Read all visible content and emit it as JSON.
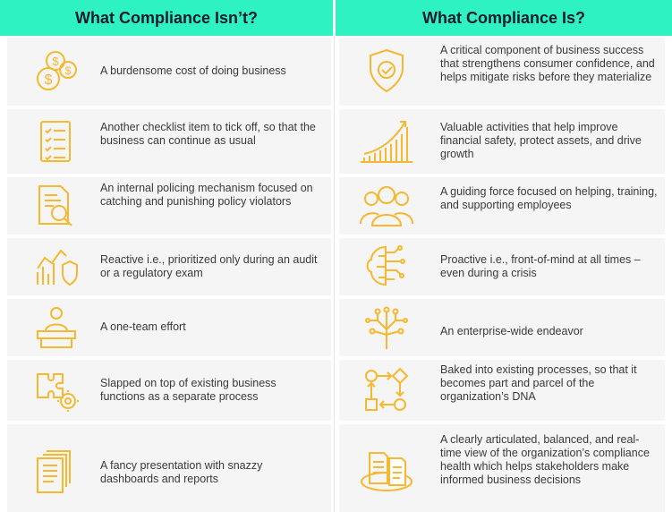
{
  "headers": {
    "left": "What Compliance Isn’t?",
    "right": "What Compliance Is?"
  },
  "accent_color": "#f5b82e",
  "header_color": "#2ef2c2",
  "left_rows": [
    {
      "icon": "dollar-coins-icon",
      "text": "A burdensome cost of doing business"
    },
    {
      "icon": "checklist-icon",
      "text": "Another checklist item to tick off, so that the business can continue as usual"
    },
    {
      "icon": "document-magnifier-icon",
      "text": "An internal policing mechanism focused on catching and punishing policy violators"
    },
    {
      "icon": "chart-shield-icon",
      "text": "Reactive i.e., prioritized only during an audit or a regulatory exam"
    },
    {
      "icon": "person-podium-icon",
      "text": "A one-team effort"
    },
    {
      "icon": "puzzle-gears-icon",
      "text": "Slapped on top of existing business functions as a separate process"
    },
    {
      "icon": "document-stack-icon",
      "text": "A fancy presentation with snazzy dashboards and reports"
    }
  ],
  "right_rows": [
    {
      "icon": "shield-check-icon",
      "text": "A critical component of business success that strengthens consumer confidence, and helps mitigate risks before they materialize"
    },
    {
      "icon": "growth-bars-icon",
      "text": "Valuable activities that help improve financial safety, protect assets, and drive growth"
    },
    {
      "icon": "team-people-icon",
      "text": "A guiding force focused on helping, training, and supporting employees"
    },
    {
      "icon": "brain-circuit-icon",
      "text": "Proactive i.e., front-of-mind at all times – even during a crisis"
    },
    {
      "icon": "circuit-tree-icon",
      "text": "An enterprise-wide endeavor"
    },
    {
      "icon": "process-flow-icon",
      "text": "Baked into existing processes, so that it becomes part and parcel of the organization’s DNA"
    },
    {
      "icon": "documents-orbit-icon",
      "text": "A clearly articulated, balanced, and real-time view of the organization’s compliance health which helps stakeholders make informed business decisions"
    }
  ]
}
